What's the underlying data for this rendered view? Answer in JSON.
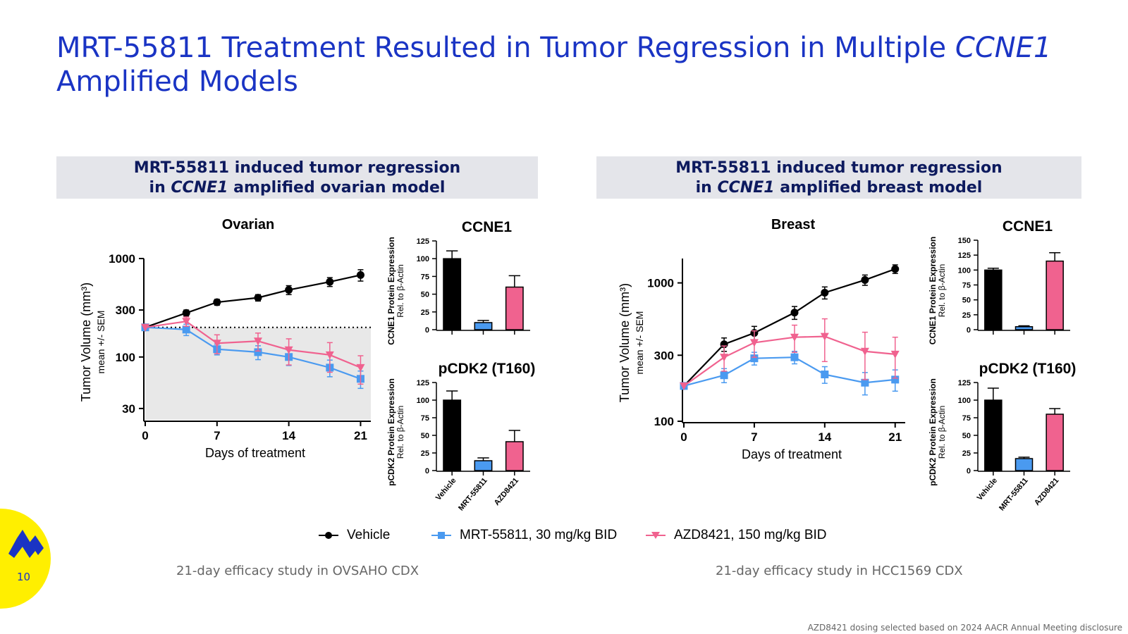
{
  "slide": {
    "title_part1": "MRT-55811 Treatment Resulted in Tumor Regression in Multiple ",
    "title_italic": "CCNE1",
    "title_part2": " Amplified Models",
    "page_number": "10",
    "disclaimer": "AZD8421 dosing selected based on 2024 AACR Annual Meeting disclosure",
    "logo_icon": "company-logo-icon",
    "accent_color": "#1a34c4"
  },
  "banners": {
    "left": {
      "line1": "MRT-55811 induced tumor regression",
      "line2_pre": "in ",
      "line2_italic": "CCNE1",
      "line2_post": " amplified ovarian model"
    },
    "right": {
      "line1": "MRT-55811 induced tumor regression",
      "line2_pre": "in ",
      "line2_italic": "CCNE1",
      "line2_post": " amplified breast model"
    }
  },
  "legend": {
    "items": [
      {
        "label": "Vehicle",
        "color": "#000000",
        "marker": "circle"
      },
      {
        "label": "MRT-55811, 30 mg/kg BID",
        "color": "#4a9af0",
        "marker": "square"
      },
      {
        "label": "AZD8421, 150 mg/kg BID",
        "color": "#f0628f",
        "marker": "triangle-down"
      }
    ]
  },
  "studies": {
    "left": "21-day efficacy study in OVSAHO CDX",
    "right": "21-day efficacy study in HCC1569 CDX"
  },
  "chart_data": [
    {
      "id": "ovarian",
      "type": "line",
      "title": "Ovarian",
      "xlabel": "Days of treatment",
      "ylabel": "Tumor Volume (mm³)",
      "ylabel_sub": "mean +/- SEM",
      "y_scale": "log",
      "xlim": [
        0,
        22
      ],
      "ylim": [
        23,
        1000
      ],
      "xticks": [
        0,
        7,
        14,
        21
      ],
      "yticks": [
        30,
        100,
        300,
        1000
      ],
      "ytick_labels": [
        "30",
        "100",
        "300",
        "1000"
      ],
      "baseline": 200,
      "shade_below_baseline": true,
      "series": [
        {
          "name": "Vehicle",
          "color": "#000000",
          "marker": "circle",
          "x": [
            0,
            4,
            7,
            11,
            14,
            18,
            21
          ],
          "y": [
            200,
            280,
            360,
            400,
            480,
            580,
            680
          ],
          "err": [
            10,
            20,
            25,
            30,
            50,
            60,
            90
          ]
        },
        {
          "name": "MRT-55811",
          "color": "#4a9af0",
          "marker": "square",
          "x": [
            0,
            4,
            7,
            11,
            14,
            18,
            21
          ],
          "y": [
            200,
            190,
            120,
            112,
            100,
            78,
            60
          ],
          "err": [
            10,
            25,
            15,
            18,
            18,
            15,
            12
          ]
        },
        {
          "name": "AZD8421",
          "color": "#f0628f",
          "marker": "triangle-down",
          "x": [
            0,
            4,
            7,
            11,
            14,
            18,
            21
          ],
          "y": [
            200,
            230,
            138,
            145,
            118,
            105,
            78
          ],
          "err": [
            10,
            25,
            30,
            30,
            35,
            35,
            25
          ]
        }
      ]
    },
    {
      "id": "breast",
      "type": "line",
      "title": "Breast",
      "xlabel": "Days of treatment",
      "ylabel": "Tumor Volume (mm³)",
      "ylabel_sub": "mean +/- SEM",
      "y_scale": "log",
      "xlim": [
        0,
        22
      ],
      "ylim": [
        100,
        1500
      ],
      "xticks": [
        0,
        7,
        14,
        21
      ],
      "yticks": [
        100,
        300,
        1000
      ],
      "ytick_labels": [
        "100",
        "300",
        "1000"
      ],
      "series": [
        {
          "name": "Vehicle",
          "color": "#000000",
          "marker": "circle",
          "x": [
            0,
            4,
            7,
            11,
            14,
            18,
            21
          ],
          "y": [
            180,
            360,
            435,
            610,
            850,
            1050,
            1260
          ],
          "err": [
            10,
            40,
            50,
            65,
            85,
            90,
            90
          ]
        },
        {
          "name": "MRT-55811",
          "color": "#4a9af0",
          "marker": "square",
          "x": [
            0,
            4,
            7,
            11,
            14,
            18,
            21
          ],
          "y": [
            180,
            215,
            285,
            290,
            218,
            190,
            200
          ],
          "err": [
            10,
            25,
            30,
            30,
            30,
            35,
            35
          ]
        },
        {
          "name": "AZD8421",
          "color": "#f0628f",
          "marker": "triangle-down",
          "x": [
            0,
            4,
            7,
            11,
            14,
            18,
            21
          ],
          "y": [
            180,
            290,
            370,
            405,
            410,
            320,
            305
          ],
          "err": [
            20,
            60,
            80,
            90,
            140,
            120,
            100
          ]
        }
      ]
    },
    {
      "id": "ovarian-ccne1",
      "type": "bar",
      "title": "CCNE1",
      "ylabel": "CCNE1 Protein Expression",
      "ylabel_sub": "Rel. to β-Actin",
      "categories": [
        "Vehicle",
        "MRT-55811",
        "AZD8421"
      ],
      "values": [
        100,
        10,
        60
      ],
      "errors": [
        11,
        3,
        16
      ],
      "colors": [
        "#000000",
        "#4a9af0",
        "#f0628f"
      ],
      "ylim": [
        0,
        125
      ],
      "yticks": [
        0,
        25,
        50,
        75,
        100,
        125
      ],
      "show_xlabels": false
    },
    {
      "id": "ovarian-pcdk2",
      "type": "bar",
      "title": "pCDK2 (T160)",
      "ylabel": "pCDK2 Protein Expression",
      "ylabel_sub": "Rel. to β-Actin",
      "categories": [
        "Vehicle",
        "MRT-55811",
        "AZD8421"
      ],
      "values": [
        100,
        14,
        41
      ],
      "errors": [
        13,
        4,
        16
      ],
      "colors": [
        "#000000",
        "#4a9af0",
        "#f0628f"
      ],
      "ylim": [
        0,
        125
      ],
      "yticks": [
        0,
        25,
        50,
        75,
        100,
        125
      ],
      "show_xlabels": true
    },
    {
      "id": "breast-ccne1",
      "type": "bar",
      "title": "CCNE1",
      "ylabel": "CCNE1 Protein Expression",
      "ylabel_sub": "Rel. to β-Actin",
      "categories": [
        "Vehicle",
        "MRT-55811",
        "AZD8421"
      ],
      "values": [
        100,
        5,
        115
      ],
      "errors": [
        3,
        1.5,
        14
      ],
      "colors": [
        "#000000",
        "#4a9af0",
        "#f0628f"
      ],
      "ylim": [
        0,
        150
      ],
      "yticks": [
        0,
        25,
        50,
        75,
        100,
        125,
        150
      ],
      "show_xlabels": false
    },
    {
      "id": "breast-pcdk2",
      "type": "bar",
      "title": "pCDK2 (T160)",
      "ylabel": "pCDK2 Protein Expression",
      "ylabel_sub": "Rel. to β-Actin",
      "categories": [
        "Vehicle",
        "MRT-55811",
        "AZD8421"
      ],
      "values": [
        100,
        17,
        80
      ],
      "errors": [
        17,
        2,
        8
      ],
      "colors": [
        "#000000",
        "#4a9af0",
        "#f0628f"
      ],
      "ylim": [
        0,
        125
      ],
      "yticks": [
        0,
        25,
        50,
        75,
        100,
        125
      ],
      "show_xlabels": true
    }
  ]
}
